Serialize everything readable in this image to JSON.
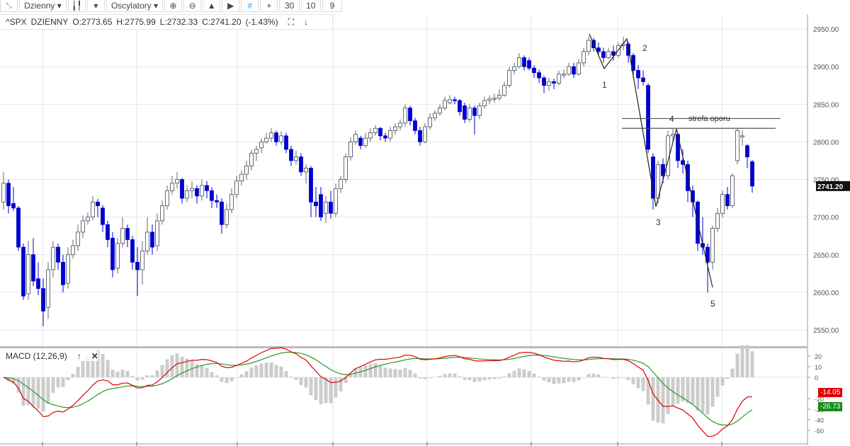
{
  "toolbar": {
    "interval": "Dzienny",
    "oscillators": "Oscylatory",
    "n1": "30",
    "n2": "10",
    "n3": "9",
    "icons": [
      "expand-icon",
      "candlestick-icon",
      "zoom-in-icon",
      "zoom-out-icon",
      "scroll-start-icon",
      "scroll-end-icon",
      "crosshair-grid-icon",
      "crosshair-icon"
    ]
  },
  "header": {
    "symbol": "^SPX",
    "interval": "DZIENNY",
    "open": "O:2773.65",
    "high": "H:2775.99",
    "low": "L:2732.33",
    "close": "C:2741.20",
    "change": "(-1.43%)"
  },
  "macd": {
    "title": "MACD (12,26,9)",
    "macd_value": "-14.05",
    "signal_value": "-26.73",
    "macd_color": "#e00000",
    "signal_color": "#2a9a2a",
    "histogram_color": "#cccccc"
  },
  "annotations": {
    "wave_labels": [
      "1",
      "2",
      "3",
      "4",
      "5"
    ],
    "zone_label": "strefa oporu"
  },
  "chart_data": {
    "type": "candlestick",
    "symbol": "^SPX",
    "last_price_label": "2741.20",
    "y_ticks": [
      "2950.00",
      "2900.00",
      "2850.00",
      "2800.00",
      "2750.00",
      "2700.00",
      "2650.00",
      "2600.00",
      "2550.00"
    ],
    "ylim": [
      2530,
      2960
    ],
    "macd_ticks": [
      "20",
      "10",
      "0",
      "-20",
      "-30",
      "-40",
      "-50"
    ],
    "macd_ylim": [
      -63,
      28
    ],
    "grid": true,
    "bull_color": "#ffffff",
    "bear_color": "#0000cc",
    "ohlc": [
      [
        2720,
        2760,
        2710,
        2745
      ],
      [
        2745,
        2750,
        2705,
        2715
      ],
      [
        2718,
        2740,
        2708,
        2712
      ],
      [
        2712,
        2715,
        2655,
        2660
      ],
      [
        2660,
        2665,
        2590,
        2595
      ],
      [
        2598,
        2668,
        2590,
        2650
      ],
      [
        2650,
        2672,
        2608,
        2615
      ],
      [
        2618,
        2640,
        2596,
        2605
      ],
      [
        2605,
        2618,
        2555,
        2575
      ],
      [
        2580,
        2640,
        2565,
        2630
      ],
      [
        2630,
        2668,
        2620,
        2660
      ],
      [
        2660,
        2665,
        2630,
        2640
      ],
      [
        2640,
        2650,
        2600,
        2610
      ],
      [
        2612,
        2660,
        2605,
        2650
      ],
      [
        2650,
        2670,
        2645,
        2662
      ],
      [
        2662,
        2690,
        2655,
        2680
      ],
      [
        2680,
        2702,
        2672,
        2695
      ],
      [
        2695,
        2706,
        2690,
        2700
      ],
      [
        2700,
        2728,
        2696,
        2720
      ],
      [
        2720,
        2724,
        2700,
        2715
      ],
      [
        2712,
        2716,
        2680,
        2690
      ],
      [
        2690,
        2695,
        2660,
        2670
      ],
      [
        2672,
        2680,
        2620,
        2630
      ],
      [
        2632,
        2672,
        2625,
        2665
      ],
      [
        2665,
        2700,
        2660,
        2685
      ],
      [
        2685,
        2690,
        2660,
        2670
      ],
      [
        2670,
        2675,
        2630,
        2640
      ],
      [
        2640,
        2660,
        2595,
        2630
      ],
      [
        2630,
        2668,
        2610,
        2655
      ],
      [
        2655,
        2700,
        2650,
        2680
      ],
      [
        2680,
        2690,
        2650,
        2660
      ],
      [
        2662,
        2705,
        2655,
        2695
      ],
      [
        2695,
        2722,
        2690,
        2715
      ],
      [
        2715,
        2742,
        2710,
        2735
      ],
      [
        2735,
        2755,
        2730,
        2745
      ],
      [
        2745,
        2760,
        2738,
        2750
      ],
      [
        2750,
        2752,
        2718,
        2725
      ],
      [
        2725,
        2742,
        2720,
        2735
      ],
      [
        2735,
        2748,
        2725,
        2738
      ],
      [
        2738,
        2742,
        2718,
        2728
      ],
      [
        2728,
        2750,
        2722,
        2742
      ],
      [
        2742,
        2748,
        2725,
        2735
      ],
      [
        2735,
        2740,
        2712,
        2722
      ],
      [
        2722,
        2730,
        2712,
        2720
      ],
      [
        2720,
        2725,
        2678,
        2690
      ],
      [
        2690,
        2718,
        2685,
        2710
      ],
      [
        2710,
        2738,
        2705,
        2730
      ],
      [
        2730,
        2755,
        2725,
        2748
      ],
      [
        2748,
        2762,
        2742,
        2757
      ],
      [
        2757,
        2775,
        2750,
        2768
      ],
      [
        2768,
        2790,
        2762,
        2785
      ],
      [
        2785,
        2795,
        2775,
        2790
      ],
      [
        2792,
        2805,
        2785,
        2800
      ],
      [
        2800,
        2812,
        2798,
        2805
      ],
      [
        2805,
        2818,
        2800,
        2812
      ],
      [
        2812,
        2815,
        2795,
        2800
      ],
      [
        2800,
        2814,
        2796,
        2808
      ],
      [
        2808,
        2812,
        2785,
        2790
      ],
      [
        2790,
        2795,
        2768,
        2775
      ],
      [
        2775,
        2788,
        2770,
        2780
      ],
      [
        2780,
        2785,
        2755,
        2760
      ],
      [
        2760,
        2770,
        2745,
        2765
      ],
      [
        2765,
        2768,
        2700,
        2720
      ],
      [
        2720,
        2740,
        2700,
        2715
      ],
      [
        2730,
        2740,
        2695,
        2700
      ],
      [
        2705,
        2728,
        2692,
        2720
      ],
      [
        2720,
        2735,
        2698,
        2705
      ],
      [
        2705,
        2745,
        2700,
        2738
      ],
      [
        2738,
        2755,
        2732,
        2750
      ],
      [
        2750,
        2785,
        2745,
        2780
      ],
      [
        2780,
        2806,
        2775,
        2800
      ],
      [
        2800,
        2815,
        2796,
        2810
      ],
      [
        2805,
        2808,
        2790,
        2795
      ],
      [
        2795,
        2812,
        2792,
        2805
      ],
      [
        2805,
        2818,
        2800,
        2812
      ],
      [
        2812,
        2822,
        2808,
        2818
      ],
      [
        2818,
        2820,
        2802,
        2808
      ],
      [
        2808,
        2812,
        2800,
        2805
      ],
      [
        2805,
        2820,
        2800,
        2815
      ],
      [
        2815,
        2825,
        2810,
        2820
      ],
      [
        2820,
        2830,
        2815,
        2825
      ],
      [
        2825,
        2850,
        2820,
        2845
      ],
      [
        2845,
        2848,
        2822,
        2828
      ],
      [
        2828,
        2832,
        2810,
        2815
      ],
      [
        2815,
        2820,
        2795,
        2800
      ],
      [
        2800,
        2825,
        2798,
        2820
      ],
      [
        2820,
        2838,
        2816,
        2832
      ],
      [
        2832,
        2842,
        2828,
        2838
      ],
      [
        2838,
        2850,
        2835,
        2845
      ],
      [
        2845,
        2860,
        2842,
        2855
      ],
      [
        2852,
        2862,
        2850,
        2856
      ],
      [
        2856,
        2860,
        2850,
        2855
      ],
      [
        2855,
        2857,
        2835,
        2840
      ],
      [
        2848,
        2852,
        2825,
        2830
      ],
      [
        2830,
        2850,
        2826,
        2845
      ],
      [
        2845,
        2848,
        2810,
        2835
      ],
      [
        2835,
        2852,
        2830,
        2848
      ],
      [
        2848,
        2860,
        2844,
        2855
      ],
      [
        2855,
        2862,
        2850,
        2857
      ],
      [
        2857,
        2864,
        2852,
        2858
      ],
      [
        2858,
        2870,
        2855,
        2862
      ],
      [
        2862,
        2880,
        2860,
        2875
      ],
      [
        2875,
        2900,
        2872,
        2895
      ],
      [
        2895,
        2905,
        2890,
        2900
      ],
      [
        2900,
        2918,
        2898,
        2912
      ],
      [
        2912,
        2915,
        2895,
        2900
      ],
      [
        2908,
        2912,
        2895,
        2898
      ],
      [
        2898,
        2902,
        2885,
        2892
      ],
      [
        2892,
        2896,
        2878,
        2885
      ],
      [
        2885,
        2888,
        2865,
        2875
      ],
      [
        2875,
        2885,
        2868,
        2880
      ],
      [
        2880,
        2884,
        2870,
        2878
      ],
      [
        2878,
        2895,
        2875,
        2890
      ],
      [
        2890,
        2896,
        2885,
        2890
      ],
      [
        2890,
        2905,
        2888,
        2900
      ],
      [
        2900,
        2905,
        2885,
        2890
      ],
      [
        2890,
        2910,
        2888,
        2905
      ],
      [
        2905,
        2925,
        2900,
        2920
      ],
      [
        2920,
        2940,
        2915,
        2935
      ],
      [
        2935,
        2938,
        2920,
        2925
      ],
      [
        2925,
        2932,
        2915,
        2920
      ],
      [
        2920,
        2925,
        2905,
        2912
      ],
      [
        2912,
        2925,
        2910,
        2920
      ],
      [
        2920,
        2928,
        2908,
        2915
      ],
      [
        2915,
        2932,
        2912,
        2928
      ],
      [
        2928,
        2940,
        2922,
        2930
      ],
      [
        2930,
        2933,
        2905,
        2915
      ],
      [
        2915,
        2918,
        2885,
        2895
      ],
      [
        2895,
        2902,
        2870,
        2885
      ],
      [
        2885,
        2895,
        2875,
        2880
      ],
      [
        2875,
        2878,
        2785,
        2790
      ],
      [
        2780,
        2785,
        2710,
        2725
      ],
      [
        2725,
        2775,
        2718,
        2770
      ],
      [
        2770,
        2778,
        2745,
        2755
      ],
      [
        2755,
        2815,
        2750,
        2808
      ],
      [
        2808,
        2818,
        2800,
        2810
      ],
      [
        2810,
        2812,
        2765,
        2775
      ],
      [
        2775,
        2790,
        2758,
        2770
      ],
      [
        2770,
        2775,
        2720,
        2735
      ],
      [
        2735,
        2742,
        2700,
        2720
      ],
      [
        2720,
        2722,
        2655,
        2665
      ],
      [
        2665,
        2700,
        2650,
        2660
      ],
      [
        2660,
        2665,
        2600,
        2640
      ],
      [
        2640,
        2688,
        2630,
        2685
      ],
      [
        2685,
        2712,
        2680,
        2705
      ],
      [
        2705,
        2735,
        2700,
        2730
      ],
      [
        2730,
        2740,
        2710,
        2715
      ],
      [
        2715,
        2758,
        2712,
        2755
      ],
      [
        2775,
        2818,
        2770,
        2815
      ],
      [
        2808,
        2815,
        2795,
        2808
      ],
      [
        2795,
        2797,
        2765,
        2780
      ],
      [
        2773.65,
        2775.99,
        2732.33,
        2741.2
      ]
    ],
    "resistance_zone": [
      2818,
      2831
    ]
  }
}
